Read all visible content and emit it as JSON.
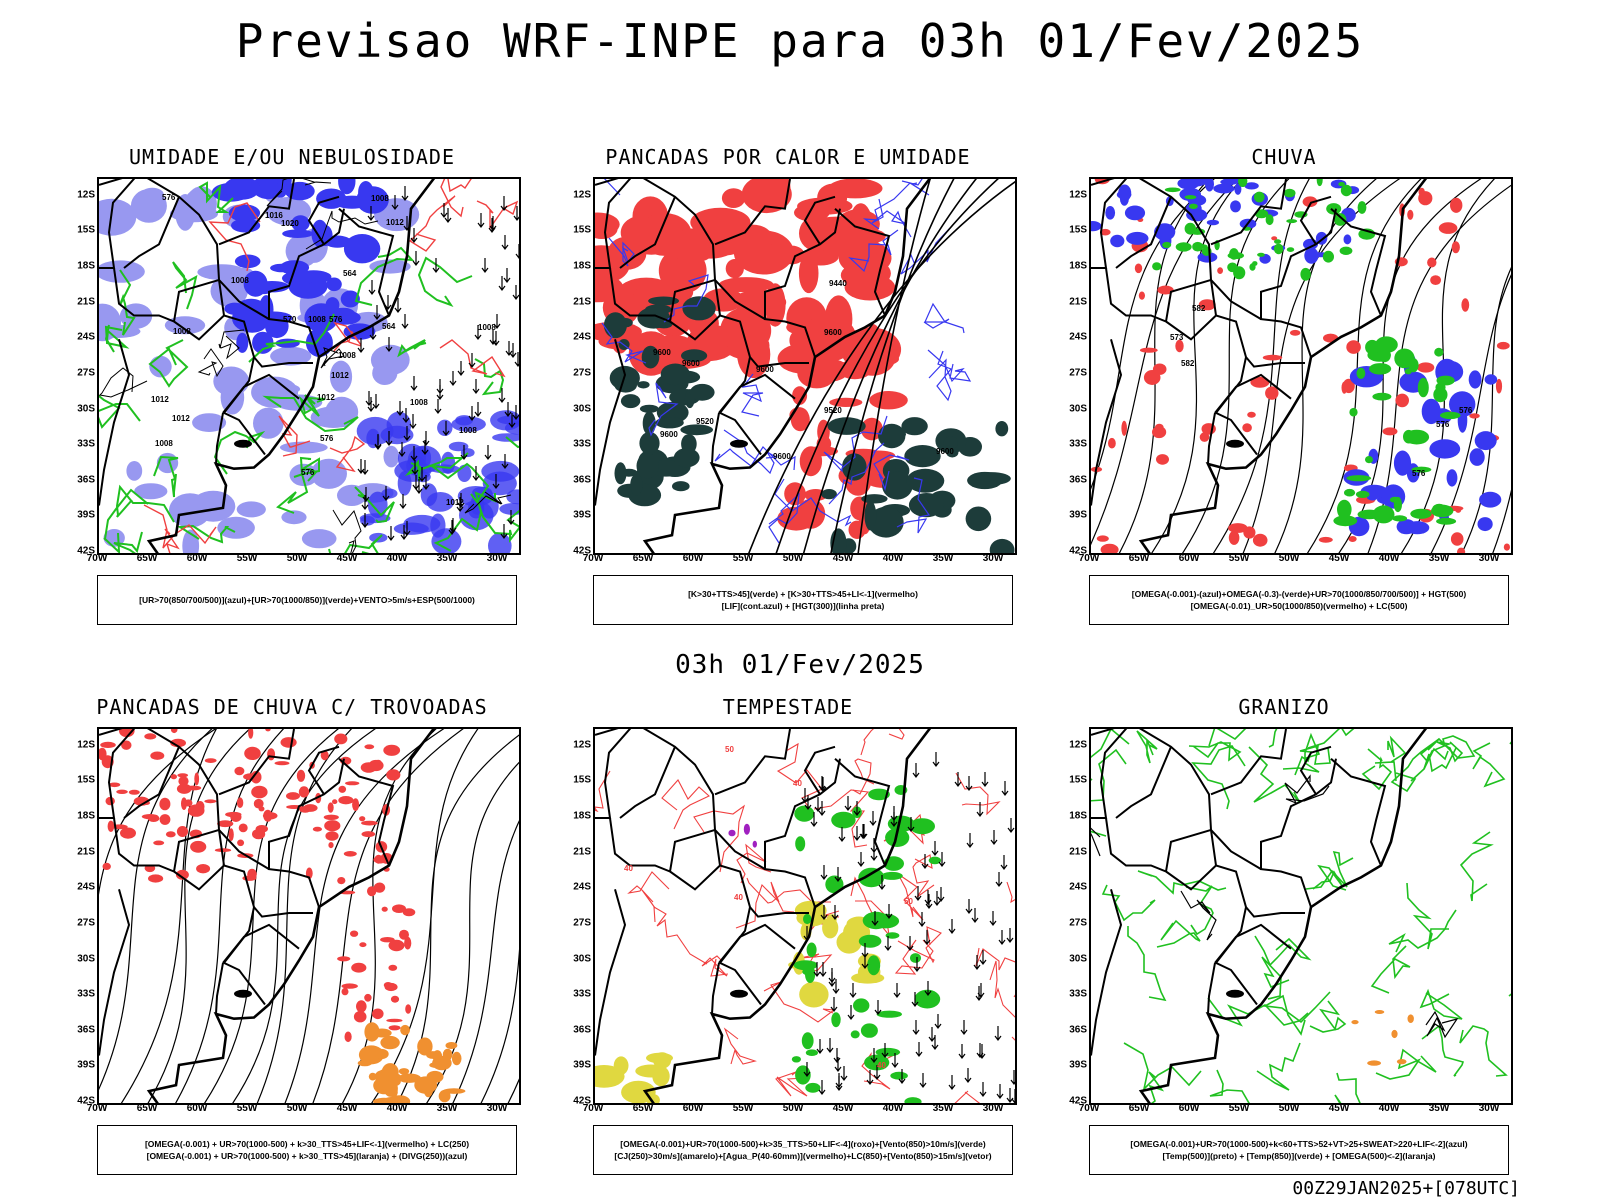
{
  "header": {
    "title": "Previsao WRF-INPE  para 03h 01/Fev/2025"
  },
  "middle": {
    "title": "03h 01/Fev/2025"
  },
  "footer": {
    "stamp": "00Z29JAN2025+[078UTC]"
  },
  "axes": {
    "latitudes": [
      "12S",
      "15S",
      "18S",
      "21S",
      "24S",
      "27S",
      "30S",
      "33S",
      "36S",
      "39S",
      "42S"
    ],
    "longitudes": [
      "70W",
      "65W",
      "60W",
      "55W",
      "50W",
      "45W",
      "40W",
      "35W",
      "30W"
    ]
  },
  "panels": [
    {
      "title": "UMIDADE E/OU NEBULOSIDADE",
      "legend": [
        "[UR>70(850/700/500)](azul)+[UR>70(1000/850)](verde)+VENTO>5m/s+ESP(500/1000)"
      ],
      "labels": [
        "1012",
        "1008",
        "1008",
        "1012",
        "1012",
        "1008",
        "1012",
        "1008",
        "1008",
        "1016",
        "1020",
        "1012",
        "1008",
        "1008",
        "1008",
        "1012",
        "1008",
        "576",
        "576",
        "576",
        "570",
        "564",
        "564",
        "576"
      ]
    },
    {
      "title": "PANCADAS POR CALOR E UMIDADE",
      "legend": [
        "[K>30+TTS>45](verde)  +  [K>30+TTS>45+LI<-1](vermelho)",
        "[LIF](cont.azul)  +  [HGT(300)](linha preta)"
      ],
      "labels": [
        "9600",
        "9600",
        "9600",
        "9600",
        "9600",
        "9600",
        "9600",
        "9520",
        "9440",
        "9520"
      ]
    },
    {
      "title": "CHUVA",
      "legend": [
        "[OMEGA(-0.001)-(azul)+OMEGA(-0.3)-(verde)+UR>70(1000/850/700/500)]  +  HGT(500)",
        "[OMEGA(-0.01)_UR>50(1000/850)(vermelho)  +  LC(500)"
      ],
      "labels": [
        "582",
        "576",
        "576",
        "576",
        "582",
        "573"
      ]
    },
    {
      "title": "PANCADAS DE CHUVA C/ TROVOADAS",
      "legend": [
        "[OMEGA(-0.001)  +  UR>70(1000-500)  +  k>30_TTS>45+LIF<-1](vermelho)  +  LC(250)",
        "[OMEGA(-0.001)  +  UR>70(1000-500)  +  k>30_TTS>45](laranja)  +  (DIVG(250))(azul)"
      ],
      "labels": []
    },
    {
      "title": "TEMPESTADE",
      "legend": [
        "[OMEGA(-0.001)+UR>70(1000-500)+k>35_TTS>50+LIF<-4](roxo)+[Vento(850)>10m/s](verde)",
        "[CJ(250)>30m/s](amarelo)+[Agua_P(40-60mm)](vermelho)+LC(850)+[Vento(850)>15m/s](vetor)"
      ],
      "labels": [
        "50",
        "40",
        "40",
        "40",
        "50",
        "40"
      ]
    },
    {
      "title": "GRANIZO",
      "legend": [
        "[OMEGA(-0.001)+UR>70(1000-500)+k<60+TTS>52+VT>25+SWEAT>220+LIF<-2](azul)",
        "[Temp(500)](preto)  +  [Temp(850)](verde)  +  [OMEGA(500)<-2](laranja)"
      ],
      "labels": []
    }
  ],
  "colors": {
    "blue": "#3838f0",
    "lightblue": "#9898f0",
    "green": "#20c020",
    "red": "#f04040",
    "darkgreen": "#1d3c3a",
    "orange": "#f09030",
    "yellow": "#e0d840",
    "purple": "#a020c0"
  }
}
